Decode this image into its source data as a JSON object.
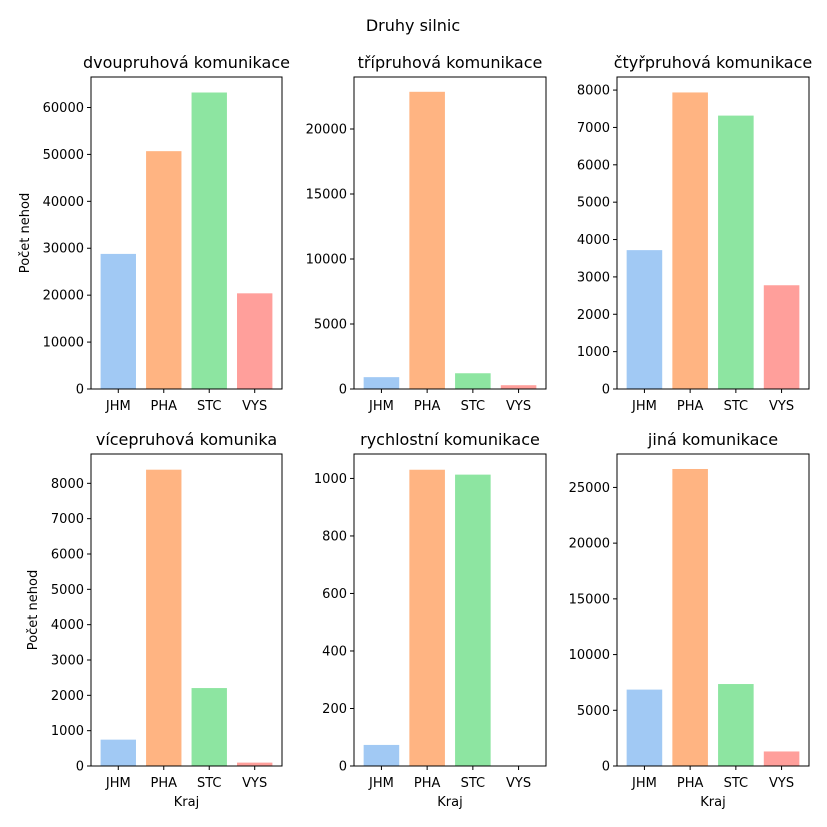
{
  "figure": {
    "title": "Druhy silnic"
  },
  "chart_data": [
    {
      "type": "bar",
      "title": "dvoupruhová komunikace",
      "xlabel": "",
      "ylabel": "Počet nehod",
      "categories": [
        "JHM",
        "PHA",
        "STC",
        "VYS"
      ],
      "values": [
        28900,
        50800,
        63300,
        20500
      ],
      "ylim": [
        0,
        66500
      ],
      "yticks": [
        0,
        10000,
        20000,
        30000,
        40000,
        50000,
        60000
      ]
    },
    {
      "type": "bar",
      "title": "třípruhová komunikace",
      "xlabel": "",
      "ylabel": "",
      "categories": [
        "JHM",
        "PHA",
        "STC",
        "VYS"
      ],
      "values": [
        950,
        22900,
        1250,
        330
      ],
      "ylim": [
        0,
        24000
      ],
      "yticks": [
        0,
        5000,
        10000,
        15000,
        20000
      ]
    },
    {
      "type": "bar",
      "title": "čtyřpruhová komunikace",
      "xlabel": "",
      "ylabel": "",
      "categories": [
        "JHM",
        "PHA",
        "STC",
        "VYS"
      ],
      "values": [
        3730,
        7950,
        7330,
        2790
      ],
      "ylim": [
        0,
        8350
      ],
      "yticks": [
        0,
        1000,
        2000,
        3000,
        4000,
        5000,
        6000,
        7000,
        8000
      ]
    },
    {
      "type": "bar",
      "title": "vícepruhová komunika",
      "xlabel": "Kraj",
      "ylabel": "Počet nehod",
      "categories": [
        "JHM",
        "PHA",
        "STC",
        "VYS"
      ],
      "values": [
        760,
        8400,
        2220,
        110
      ],
      "ylim": [
        0,
        8830
      ],
      "yticks": [
        0,
        1000,
        2000,
        3000,
        4000,
        5000,
        6000,
        7000,
        8000
      ]
    },
    {
      "type": "bar",
      "title": "rychlostní komunikace",
      "xlabel": "Kraj",
      "ylabel": "",
      "categories": [
        "JHM",
        "PHA",
        "STC",
        "VYS"
      ],
      "values": [
        75,
        1032,
        1015,
        0
      ],
      "ylim": [
        0,
        1085
      ],
      "yticks": [
        0,
        200,
        400,
        600,
        800,
        1000
      ]
    },
    {
      "type": "bar",
      "title": "jiná komunikace",
      "xlabel": "Kraj",
      "ylabel": "",
      "categories": [
        "JHM",
        "PHA",
        "STC",
        "VYS"
      ],
      "values": [
        6900,
        26700,
        7400,
        1350
      ],
      "ylim": [
        0,
        28000
      ],
      "yticks": [
        0,
        5000,
        10000,
        15000,
        20000,
        25000
      ]
    }
  ],
  "colors": {
    "JHM": "#a1c9f4",
    "PHA": "#ffb482",
    "STC": "#8de5a1",
    "VYS": "#ff9f9b"
  }
}
